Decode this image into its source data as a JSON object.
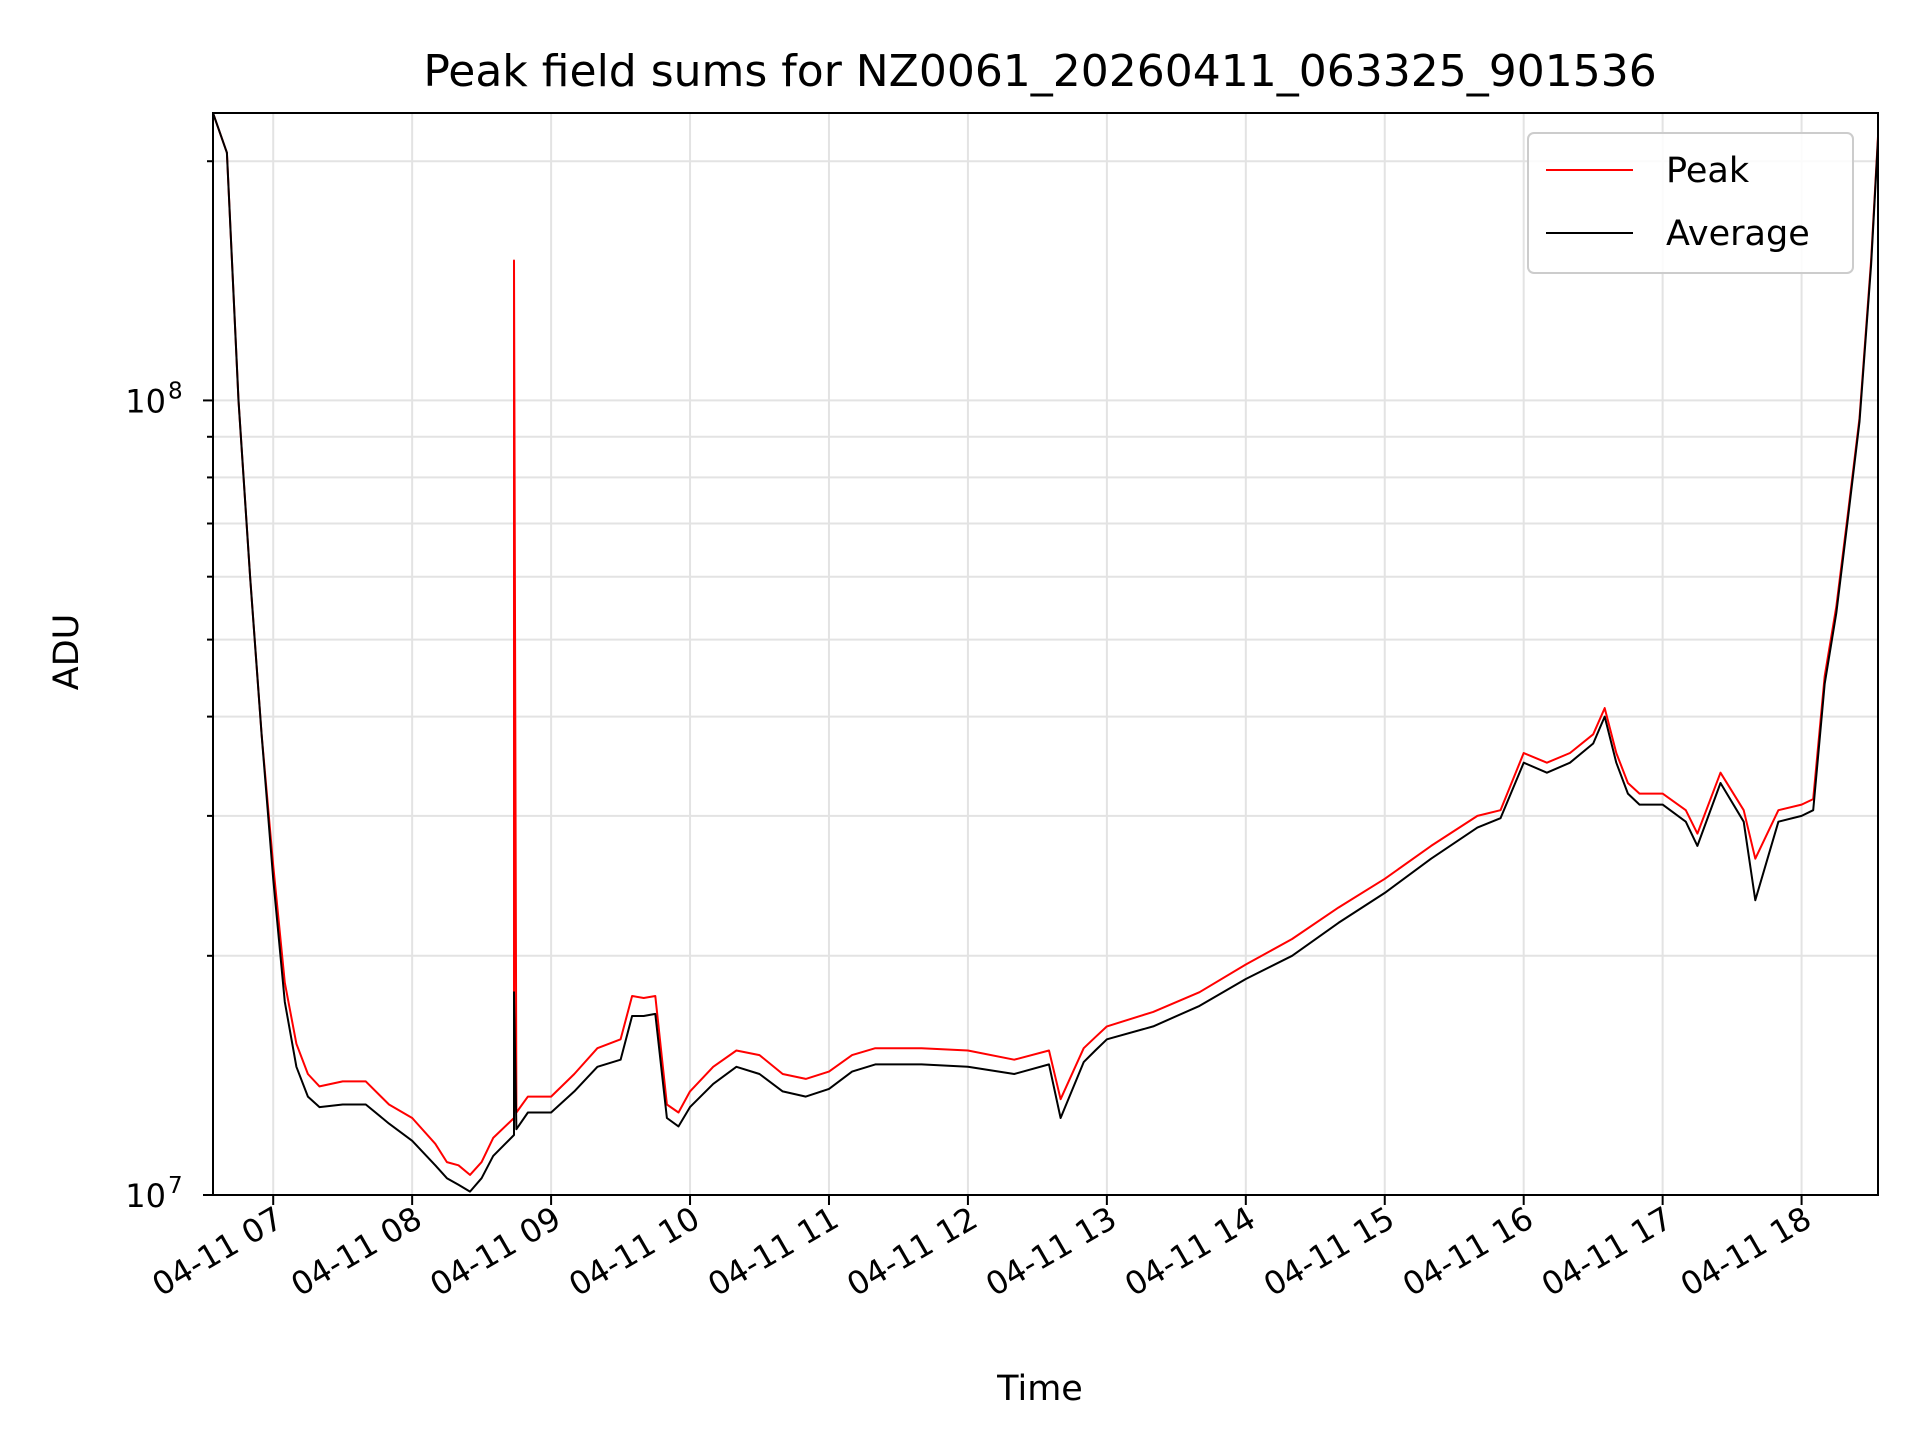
{
  "chart_data": {
    "type": "line",
    "title": "Peak field sums for NZ0061_20260411_063325_901536",
    "xlabel": "Time",
    "ylabel": "ADU",
    "yscale": "log",
    "ylim": [
      10000000,
      230000000
    ],
    "xlim": [
      "04-11 06:34",
      "04-11 18:33"
    ],
    "grid": true,
    "legend": "upper right",
    "x_ticks": [
      "04-11 07",
      "04-11 08",
      "04-11 09",
      "04-11 10",
      "04-11 11",
      "04-11 12",
      "04-11 13",
      "04-11 14",
      "04-11 15",
      "04-11 16",
      "04-11 17",
      "04-11 18"
    ],
    "y_ticks": [
      {
        "base": "10",
        "exp": "7",
        "value": 10000000
      },
      {
        "base": "10",
        "exp": "8",
        "value": 100000000
      }
    ],
    "series": [
      {
        "name": "Peak",
        "color": "#ff0000",
        "x": [
          "04-11 06:34",
          "04-11 06:40",
          "04-11 06:45",
          "04-11 06:50",
          "04-11 06:55",
          "04-11 07:00",
          "04-11 07:05",
          "04-11 07:10",
          "04-11 07:15",
          "04-11 07:20",
          "04-11 07:30",
          "04-11 07:40",
          "04-11 07:50",
          "04-11 08:00",
          "04-11 08:10",
          "04-11 08:15",
          "04-11 08:20",
          "04-11 08:25",
          "04-11 08:30",
          "04-11 08:35",
          "04-11 08:44",
          "04-11 08:44",
          "04-11 08:45",
          "04-11 08:50",
          "04-11 09:00",
          "04-11 09:10",
          "04-11 09:20",
          "04-11 09:30",
          "04-11 09:35",
          "04-11 09:40",
          "04-11 09:45",
          "04-11 09:50",
          "04-11 09:55",
          "04-11 10:00",
          "04-11 10:10",
          "04-11 10:20",
          "04-11 10:30",
          "04-11 10:40",
          "04-11 10:50",
          "04-11 11:00",
          "04-11 11:10",
          "04-11 11:20",
          "04-11 11:30",
          "04-11 11:40",
          "04-11 12:00",
          "04-11 12:20",
          "04-11 12:35",
          "04-11 12:40",
          "04-11 12:50",
          "04-11 12:55",
          "04-11 13:00",
          "04-11 13:20",
          "04-11 13:40",
          "04-11 14:00",
          "04-11 14:20",
          "04-11 14:40",
          "04-11 15:00",
          "04-11 15:20",
          "04-11 15:40",
          "04-11 15:50",
          "04-11 16:00",
          "04-11 16:10",
          "04-11 16:20",
          "04-11 16:30",
          "04-11 16:35",
          "04-11 16:40",
          "04-11 16:45",
          "04-11 16:50",
          "04-11 17:00",
          "04-11 17:10",
          "04-11 17:15",
          "04-11 17:25",
          "04-11 17:35",
          "04-11 17:40",
          "04-11 17:50",
          "04-11 18:00",
          "04-11 18:05",
          "04-11 18:10",
          "04-11 18:15",
          "04-11 18:20",
          "04-11 18:25",
          "04-11 18:30",
          "04-11 18:33"
        ],
        "values": [
          250000000,
          205000000,
          100000000,
          60000000,
          38000000,
          26000000,
          18500000,
          15500000,
          14200000,
          13700000,
          13900000,
          13900000,
          13000000,
          12500000,
          11600000,
          11000000,
          10900000,
          10600000,
          11000000,
          11800000,
          12500000,
          150000000,
          12700000,
          13300000,
          13300000,
          14200000,
          15300000,
          15700000,
          17800000,
          17700000,
          17800000,
          13000000,
          12700000,
          13500000,
          14500000,
          15200000,
          15000000,
          14200000,
          14000000,
          14300000,
          15000000,
          15300000,
          15300000,
          15300000,
          15200000,
          14800000,
          15200000,
          13200000,
          15300000,
          15800000,
          16300000,
          17000000,
          18000000,
          19500000,
          21000000,
          23000000,
          25000000,
          27500000,
          30000000,
          30500000,
          36000000,
          35000000,
          36000000,
          38000000,
          41000000,
          36000000,
          33000000,
          32000000,
          32000000,
          30500000,
          28500000,
          34000000,
          30500000,
          26500000,
          30500000,
          31000000,
          31500000,
          45000000,
          55000000,
          72000000,
          95000000,
          150000000,
          215000000
        ]
      },
      {
        "name": "Average",
        "color": "#000000",
        "x": [
          "04-11 06:34",
          "04-11 06:40",
          "04-11 06:45",
          "04-11 06:50",
          "04-11 06:55",
          "04-11 07:00",
          "04-11 07:05",
          "04-11 07:10",
          "04-11 07:15",
          "04-11 07:20",
          "04-11 07:30",
          "04-11 07:40",
          "04-11 07:50",
          "04-11 08:00",
          "04-11 08:10",
          "04-11 08:15",
          "04-11 08:20",
          "04-11 08:25",
          "04-11 08:30",
          "04-11 08:35",
          "04-11 08:44",
          "04-11 08:44",
          "04-11 08:45",
          "04-11 08:50",
          "04-11 09:00",
          "04-11 09:10",
          "04-11 09:20",
          "04-11 09:30",
          "04-11 09:35",
          "04-11 09:40",
          "04-11 09:45",
          "04-11 09:50",
          "04-11 09:55",
          "04-11 10:00",
          "04-11 10:10",
          "04-11 10:20",
          "04-11 10:30",
          "04-11 10:40",
          "04-11 10:50",
          "04-11 11:00",
          "04-11 11:10",
          "04-11 11:20",
          "04-11 11:30",
          "04-11 11:40",
          "04-11 12:00",
          "04-11 12:20",
          "04-11 12:35",
          "04-11 12:40",
          "04-11 12:50",
          "04-11 12:55",
          "04-11 13:00",
          "04-11 13:20",
          "04-11 13:40",
          "04-11 14:00",
          "04-11 14:20",
          "04-11 14:40",
          "04-11 15:00",
          "04-11 15:20",
          "04-11 15:40",
          "04-11 15:50",
          "04-11 16:00",
          "04-11 16:10",
          "04-11 16:20",
          "04-11 16:30",
          "04-11 16:35",
          "04-11 16:40",
          "04-11 16:45",
          "04-11 16:50",
          "04-11 17:00",
          "04-11 17:10",
          "04-11 17:15",
          "04-11 17:25",
          "04-11 17:35",
          "04-11 17:40",
          "04-11 17:50",
          "04-11 18:00",
          "04-11 18:05",
          "04-11 18:10",
          "04-11 18:15",
          "04-11 18:20",
          "04-11 18:25",
          "04-11 18:30",
          "04-11 18:33"
        ],
        "values": [
          250000000,
          205000000,
          100000000,
          60000000,
          38000000,
          25000000,
          17500000,
          14500000,
          13300000,
          12900000,
          13000000,
          13000000,
          12300000,
          11700000,
          10900000,
          10500000,
          10300000,
          10100000,
          10500000,
          11200000,
          11900000,
          18000000,
          12100000,
          12700000,
          12700000,
          13500000,
          14500000,
          14800000,
          16800000,
          16800000,
          16900000,
          12500000,
          12200000,
          12900000,
          13800000,
          14500000,
          14200000,
          13500000,
          13300000,
          13600000,
          14300000,
          14600000,
          14600000,
          14600000,
          14500000,
          14200000,
          14600000,
          12500000,
          14700000,
          15200000,
          15700000,
          16300000,
          17300000,
          18700000,
          20000000,
          22000000,
          24000000,
          26500000,
          29000000,
          29800000,
          35000000,
          34000000,
          35000000,
          37000000,
          40000000,
          35000000,
          32000000,
          31000000,
          31000000,
          29500000,
          27500000,
          33000000,
          29500000,
          23500000,
          29500000,
          30000000,
          30500000,
          44000000,
          54000000,
          71000000,
          94000000,
          148000000,
          213000000
        ]
      }
    ]
  }
}
